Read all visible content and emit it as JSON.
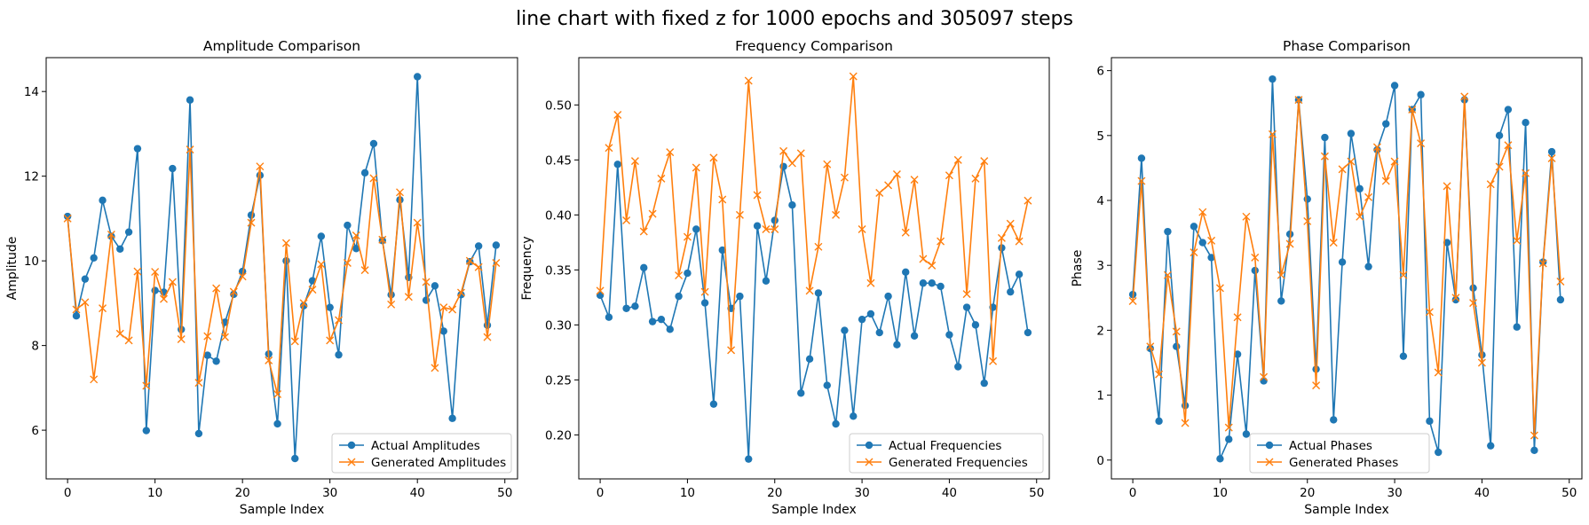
{
  "figure": {
    "suptitle": "line chart with fixed z for 1000 epochs and 305097 steps"
  },
  "colors": {
    "actual": "#1f77b4",
    "generated": "#ff7f0e"
  },
  "chart_data": [
    {
      "type": "line",
      "title": "Amplitude Comparison",
      "xlabel": "Sample Index",
      "ylabel": "Amplitude",
      "xlim": [
        -2.45,
        51.45
      ],
      "ylim": [
        4.85,
        14.8
      ],
      "xticks": [
        0,
        10,
        20,
        30,
        40,
        50
      ],
      "yticks": [
        6,
        8,
        10,
        12,
        14
      ],
      "legend": "lower-right",
      "grid": false,
      "series": [
        {
          "name": "Actual Amplitudes",
          "marker": "circle",
          "y": [
            11.05,
            8.7,
            9.57,
            10.07,
            11.43,
            10.58,
            10.28,
            10.68,
            12.65,
            5.99,
            9.3,
            9.26,
            12.18,
            8.38,
            13.8,
            5.92,
            7.77,
            7.63,
            8.55,
            9.21,
            9.75,
            11.08,
            12.02,
            7.8,
            6.15,
            10.0,
            5.33,
            8.94,
            9.53,
            10.58,
            8.9,
            7.78,
            10.84,
            10.29,
            12.08,
            12.77,
            10.48,
            9.2,
            11.44,
            9.61,
            14.35,
            9.07,
            9.41,
            8.34,
            6.28,
            9.2,
            9.98,
            10.35,
            8.48,
            10.37
          ]
        },
        {
          "name": "Generated Amplitudes",
          "marker": "x",
          "y": [
            11.0,
            8.85,
            9.02,
            7.2,
            8.88,
            10.62,
            8.28,
            8.12,
            9.75,
            7.05,
            9.74,
            9.1,
            9.5,
            8.15,
            12.63,
            7.12,
            8.22,
            9.35,
            8.2,
            9.27,
            9.63,
            10.9,
            12.23,
            7.65,
            6.85,
            10.42,
            8.1,
            9.0,
            9.32,
            9.92,
            8.12,
            8.6,
            9.95,
            10.6,
            9.78,
            11.95,
            10.5,
            8.97,
            11.62,
            9.15,
            10.9,
            9.5,
            7.47,
            8.9,
            8.85,
            9.25,
            10.0,
            9.85,
            8.2,
            9.95
          ]
        }
      ]
    },
    {
      "type": "line",
      "title": "Frequency Comparison",
      "xlabel": "Sample Index",
      "ylabel": "Frequency",
      "xlim": [
        -2.45,
        51.45
      ],
      "ylim": [
        0.16,
        0.543
      ],
      "xticks": [
        0,
        10,
        20,
        30,
        40,
        50
      ],
      "yticks": [
        0.2,
        0.25,
        0.3,
        0.35,
        0.4,
        0.45,
        0.5
      ],
      "ytick_labels": [
        "0.20",
        "0.25",
        "0.30",
        "0.35",
        "0.40",
        "0.45",
        "0.50"
      ],
      "legend": "lower-right",
      "grid": false,
      "series": [
        {
          "name": "Actual Frequencies",
          "marker": "circle",
          "y": [
            0.327,
            0.307,
            0.446,
            0.315,
            0.317,
            0.352,
            0.303,
            0.305,
            0.296,
            0.326,
            0.347,
            0.387,
            0.32,
            0.228,
            0.368,
            0.315,
            0.326,
            0.178,
            0.39,
            0.34,
            0.395,
            0.444,
            0.409,
            0.238,
            0.269,
            0.329,
            0.245,
            0.21,
            0.295,
            0.217,
            0.305,
            0.31,
            0.293,
            0.326,
            0.282,
            0.348,
            0.29,
            0.338,
            0.338,
            0.335,
            0.291,
            0.262,
            0.316,
            0.3,
            0.247,
            0.316,
            0.37,
            0.33,
            0.346,
            0.293
          ]
        },
        {
          "name": "Generated Frequencies",
          "marker": "x",
          "y": [
            0.331,
            0.461,
            0.491,
            0.395,
            0.449,
            0.385,
            0.401,
            0.433,
            0.457,
            0.345,
            0.38,
            0.443,
            0.33,
            0.452,
            0.414,
            0.277,
            0.4,
            0.522,
            0.418,
            0.387,
            0.387,
            0.458,
            0.447,
            0.456,
            0.331,
            0.371,
            0.446,
            0.4,
            0.434,
            0.526,
            0.387,
            0.338,
            0.42,
            0.427,
            0.437,
            0.384,
            0.432,
            0.36,
            0.354,
            0.376,
            0.436,
            0.45,
            0.328,
            0.433,
            0.449,
            0.267,
            0.379,
            0.392,
            0.376,
            0.413
          ]
        }
      ]
    },
    {
      "type": "line",
      "title": "Phase Comparison",
      "xlabel": "Sample Index",
      "ylabel": "Phase",
      "xlim": [
        -2.45,
        51.45
      ],
      "ylim": [
        -0.29,
        6.2
      ],
      "xticks": [
        0,
        10,
        20,
        30,
        40,
        50
      ],
      "yticks": [
        0,
        1,
        2,
        3,
        4,
        5,
        6
      ],
      "legend": "lower-center",
      "grid": false,
      "series": [
        {
          "name": "Actual Phases",
          "marker": "circle",
          "y": [
            2.55,
            4.65,
            1.72,
            0.6,
            3.52,
            1.75,
            0.84,
            3.6,
            3.35,
            3.12,
            0.02,
            0.32,
            1.63,
            0.4,
            2.92,
            1.22,
            5.87,
            2.45,
            3.48,
            5.55,
            4.02,
            1.4,
            4.97,
            0.62,
            3.05,
            5.03,
            4.18,
            2.98,
            4.78,
            5.18,
            5.77,
            1.6,
            5.4,
            5.63,
            0.6,
            0.12,
            3.35,
            2.47,
            5.55,
            2.65,
            1.62,
            0.22,
            5.0,
            5.4,
            2.05,
            5.2,
            0.15,
            3.05,
            4.75,
            2.47
          ]
        },
        {
          "name": "Generated Phases",
          "marker": "x",
          "y": [
            2.45,
            4.3,
            1.75,
            1.32,
            2.85,
            1.98,
            0.57,
            3.2,
            3.82,
            3.38,
            2.65,
            0.5,
            2.2,
            3.75,
            3.12,
            1.28,
            5.02,
            2.85,
            3.33,
            5.55,
            3.68,
            1.15,
            4.68,
            3.35,
            4.48,
            4.6,
            3.75,
            4.05,
            4.82,
            4.3,
            4.6,
            2.85,
            5.4,
            4.88,
            2.28,
            1.35,
            4.22,
            2.5,
            5.6,
            2.42,
            1.5,
            4.25,
            4.52,
            4.85,
            3.38,
            4.42,
            0.38,
            3.03,
            4.65,
            2.75
          ]
        }
      ]
    }
  ]
}
